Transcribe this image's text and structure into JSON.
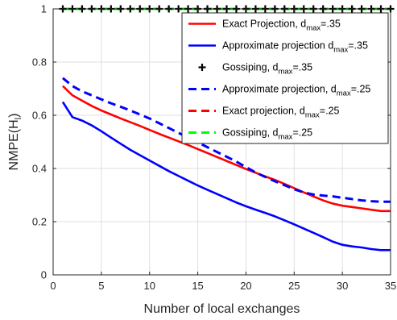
{
  "chart_data": {
    "type": "line",
    "xlabel": "Number of local exchanges",
    "ylabel": "NMPE(H_l)",
    "xlim": [
      0,
      35
    ],
    "ylim": [
      0,
      1
    ],
    "xticks": [
      "0",
      "5",
      "10",
      "15",
      "20",
      "25",
      "30",
      "35"
    ],
    "yticks": [
      "0",
      "0.2",
      "0.4",
      "0.6",
      "0.8",
      "1"
    ],
    "grid": true,
    "legend_position": "top-right",
    "series": [
      {
        "name": "Exact Projection, d_max=.35",
        "legend_main": "Exact Projection, d",
        "legend_sub": "max",
        "legend_tail": "=.35",
        "color": "#ff0000",
        "style": "solid",
        "marker": "none",
        "x": [
          1,
          2,
          3,
          4,
          5,
          6,
          7,
          8,
          9,
          10,
          11,
          12,
          13,
          14,
          15,
          16,
          17,
          18,
          19,
          20,
          21,
          22,
          23,
          24,
          25,
          26,
          27,
          28,
          29,
          30,
          31,
          32,
          33,
          34,
          35
        ],
        "y": [
          0.71,
          0.675,
          0.655,
          0.635,
          0.618,
          0.603,
          0.588,
          0.574,
          0.56,
          0.545,
          0.53,
          0.516,
          0.502,
          0.488,
          0.473,
          0.458,
          0.443,
          0.428,
          0.413,
          0.398,
          0.384,
          0.37,
          0.357,
          0.342,
          0.326,
          0.31,
          0.295,
          0.28,
          0.268,
          0.26,
          0.255,
          0.25,
          0.245,
          0.24,
          0.24
        ]
      },
      {
        "name": "Approximate projection d_max=.35",
        "legend_main": "Approximate projection d",
        "legend_sub": "max",
        "legend_tail": "=.35",
        "color": "#0000ff",
        "style": "solid",
        "marker": "none",
        "x": [
          1,
          2,
          3,
          4,
          5,
          6,
          7,
          8,
          9,
          10,
          11,
          12,
          13,
          14,
          15,
          16,
          17,
          18,
          19,
          20,
          21,
          22,
          23,
          24,
          25,
          26,
          27,
          28,
          29,
          30,
          31,
          32,
          33,
          34,
          35
        ],
        "y": [
          0.65,
          0.593,
          0.58,
          0.562,
          0.54,
          0.516,
          0.493,
          0.47,
          0.45,
          0.43,
          0.41,
          0.39,
          0.372,
          0.354,
          0.336,
          0.32,
          0.304,
          0.288,
          0.272,
          0.258,
          0.245,
          0.233,
          0.22,
          0.205,
          0.19,
          0.174,
          0.158,
          0.142,
          0.125,
          0.113,
          0.107,
          0.103,
          0.097,
          0.093,
          0.093
        ]
      },
      {
        "name": "Gossiping, d_max=.35",
        "legend_main": "Gossiping, d",
        "legend_sub": "max",
        "legend_tail": "=.35",
        "color": "#000000",
        "style": "none",
        "marker": "plus",
        "x": [
          1,
          2,
          3,
          4,
          5,
          6,
          7,
          8,
          9,
          10,
          11,
          12,
          13,
          14,
          15,
          16,
          17,
          18,
          19,
          20,
          21,
          22,
          23,
          24,
          25,
          26,
          27,
          28,
          29,
          30,
          31,
          32,
          33,
          34,
          35
        ],
        "y": [
          1,
          1,
          1,
          1,
          1,
          1,
          1,
          1,
          1,
          1,
          1,
          1,
          1,
          1,
          1,
          1,
          1,
          1,
          1,
          1,
          1,
          1,
          1,
          1,
          1,
          1,
          1,
          1,
          1,
          1,
          1,
          1,
          1,
          1,
          1
        ]
      },
      {
        "name": "Approximate projection, d_max=.25",
        "legend_main": "Approximate projection, d",
        "legend_sub": "max",
        "legend_tail": "=.25",
        "color": "#0000ff",
        "style": "dashed",
        "marker": "none",
        "x": [
          1,
          2,
          3,
          4,
          5,
          6,
          7,
          8,
          9,
          10,
          11,
          12,
          13,
          14,
          15,
          16,
          17,
          18,
          19,
          20,
          21,
          22,
          23,
          24,
          25,
          26,
          27,
          28,
          29,
          30,
          31,
          32,
          33,
          34,
          35
        ],
        "y": [
          0.74,
          0.71,
          0.69,
          0.675,
          0.66,
          0.645,
          0.632,
          0.618,
          0.603,
          0.588,
          0.57,
          0.552,
          0.534,
          0.516,
          0.498,
          0.48,
          0.462,
          0.444,
          0.426,
          0.405,
          0.385,
          0.368,
          0.352,
          0.337,
          0.322,
          0.31,
          0.302,
          0.298,
          0.295,
          0.29,
          0.285,
          0.28,
          0.277,
          0.275,
          0.275
        ]
      },
      {
        "name": "Exact projection, d_max=.25",
        "legend_main": "Exact projection, d",
        "legend_sub": "max",
        "legend_tail": "=.25",
        "color": "#ff0000",
        "style": "dashed",
        "marker": "none",
        "x": [
          1,
          35
        ],
        "y": [
          1,
          1
        ]
      },
      {
        "name": "Gossiping, d_max=.25",
        "legend_main": "Gossiping, d",
        "legend_sub": "max",
        "legend_tail": "=.25",
        "color": "#00ff00",
        "style": "dashed",
        "marker": "none",
        "x": [
          1,
          35
        ],
        "y": [
          1,
          1
        ]
      }
    ]
  }
}
